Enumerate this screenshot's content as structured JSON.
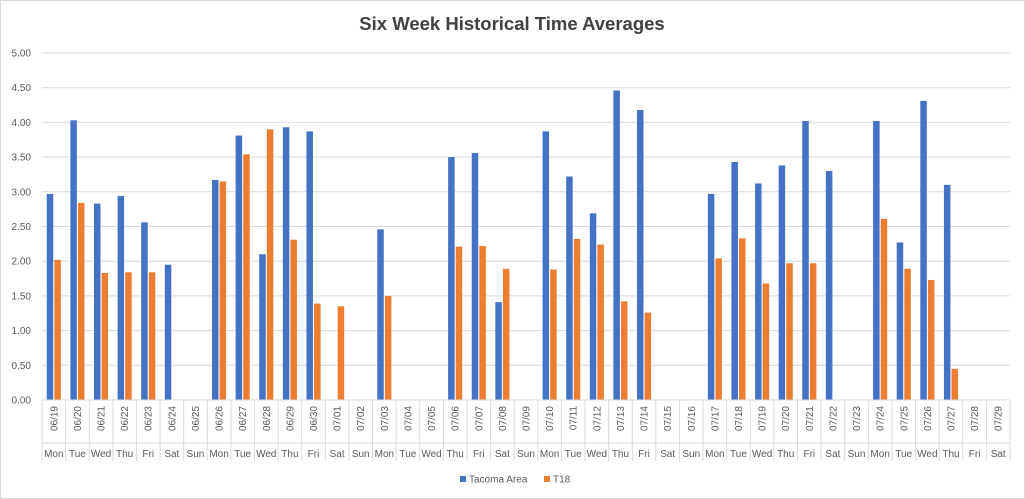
{
  "chart_data": {
    "type": "bar",
    "title": "Six Week Historical Time Averages",
    "xlabel": "",
    "ylabel": "",
    "ylim": [
      0,
      5
    ],
    "ytick_step": 0.5,
    "ytick_labels": [
      "0.00",
      "0.50",
      "1.00",
      "1.50",
      "2.00",
      "2.50",
      "3.00",
      "3.50",
      "4.00",
      "4.50",
      "5.00"
    ],
    "grid": true,
    "legend_position": "bottom",
    "categories": [
      {
        "date": "06/19",
        "day": "Mon"
      },
      {
        "date": "06/20",
        "day": "Tue"
      },
      {
        "date": "06/21",
        "day": "Wed"
      },
      {
        "date": "06/22",
        "day": "Thu"
      },
      {
        "date": "06/23",
        "day": "Fri"
      },
      {
        "date": "06/24",
        "day": "Sat"
      },
      {
        "date": "06/25",
        "day": "Sun"
      },
      {
        "date": "06/26",
        "day": "Mon"
      },
      {
        "date": "06/27",
        "day": "Tue"
      },
      {
        "date": "06/28",
        "day": "Wed"
      },
      {
        "date": "06/29",
        "day": "Thu"
      },
      {
        "date": "06/30",
        "day": "Fri"
      },
      {
        "date": "07/01",
        "day": "Sat"
      },
      {
        "date": "07/02",
        "day": "Sun"
      },
      {
        "date": "07/03",
        "day": "Mon"
      },
      {
        "date": "07/04",
        "day": "Tue"
      },
      {
        "date": "07/05",
        "day": "Wed"
      },
      {
        "date": "07/06",
        "day": "Thu"
      },
      {
        "date": "07/07",
        "day": "Fri"
      },
      {
        "date": "07/08",
        "day": "Sat"
      },
      {
        "date": "07/09",
        "day": "Sun"
      },
      {
        "date": "07/10",
        "day": "Mon"
      },
      {
        "date": "07/11",
        "day": "Tue"
      },
      {
        "date": "07/12",
        "day": "Wed"
      },
      {
        "date": "07/13",
        "day": "Thu"
      },
      {
        "date": "07/14",
        "day": "Fri"
      },
      {
        "date": "07/15",
        "day": "Sat"
      },
      {
        "date": "07/16",
        "day": "Sun"
      },
      {
        "date": "07/17",
        "day": "Mon"
      },
      {
        "date": "07/18",
        "day": "Tue"
      },
      {
        "date": "07/19",
        "day": "Wed"
      },
      {
        "date": "07/20",
        "day": "Thu"
      },
      {
        "date": "07/21",
        "day": "Fri"
      },
      {
        "date": "07/22",
        "day": "Sat"
      },
      {
        "date": "07/23",
        "day": "Sun"
      },
      {
        "date": "07/24",
        "day": "Mon"
      },
      {
        "date": "07/25",
        "day": "Tue"
      },
      {
        "date": "07/26",
        "day": "Wed"
      },
      {
        "date": "07/27",
        "day": "Thu"
      },
      {
        "date": "07/28",
        "day": "Fri"
      },
      {
        "date": "07/29",
        "day": "Sat"
      }
    ],
    "series": [
      {
        "name": "Tacoma Area",
        "color": "#4472C4",
        "values": [
          2.97,
          4.03,
          2.83,
          2.94,
          2.56,
          1.95,
          null,
          3.17,
          3.81,
          2.1,
          3.93,
          3.87,
          null,
          null,
          2.46,
          null,
          null,
          3.5,
          3.56,
          1.41,
          null,
          3.87,
          3.22,
          2.69,
          4.46,
          4.18,
          null,
          null,
          2.97,
          3.43,
          3.12,
          3.38,
          4.02,
          3.3,
          null,
          4.02,
          2.27,
          4.31,
          3.1,
          null,
          null
        ]
      },
      {
        "name": "T18",
        "color": "#ED7D31",
        "values": [
          2.02,
          2.84,
          1.83,
          1.84,
          1.84,
          null,
          null,
          3.15,
          3.54,
          3.9,
          2.31,
          1.39,
          1.35,
          null,
          1.5,
          null,
          null,
          2.21,
          2.22,
          1.89,
          null,
          1.88,
          2.32,
          2.24,
          1.42,
          1.26,
          null,
          null,
          2.04,
          2.33,
          1.68,
          1.97,
          1.97,
          null,
          null,
          2.61,
          1.89,
          1.73,
          0.45,
          null,
          null
        ]
      }
    ]
  }
}
